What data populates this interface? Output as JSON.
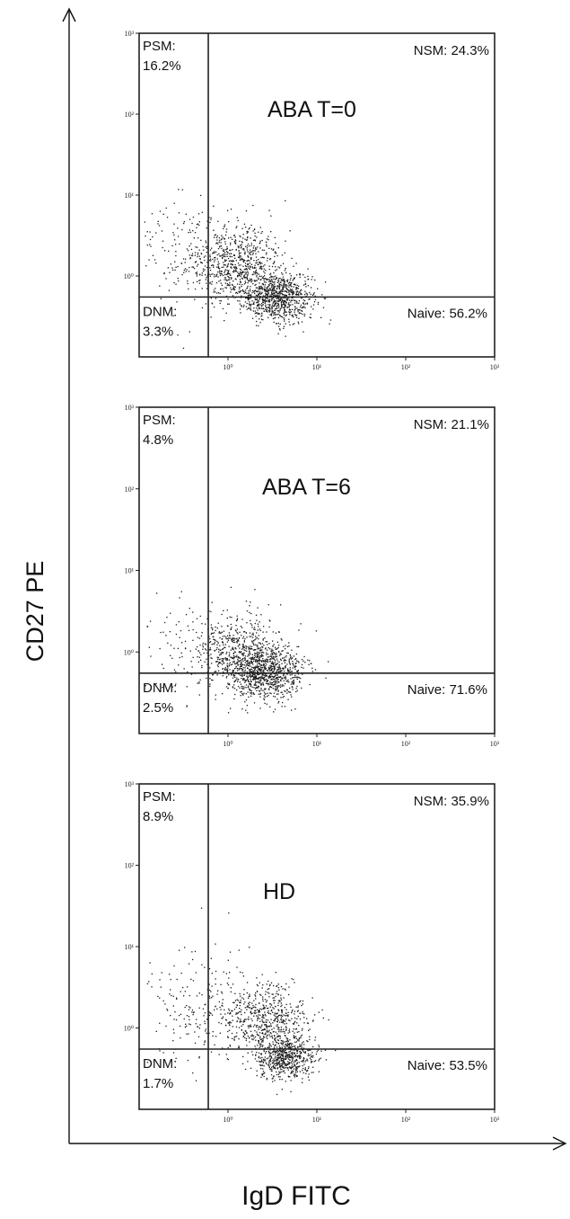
{
  "figure": {
    "y_axis_label": "CD27 PE",
    "x_axis_label": "IgD FITC"
  },
  "chart_data": [
    {
      "type": "scatter",
      "title": "ABA T=0",
      "xlabel": "IgD FITC",
      "ylabel": "CD27 PE",
      "scale": "log",
      "xlim": [
        0.1,
        1000
      ],
      "ylim": [
        0.1,
        1000
      ],
      "x_tick_labels": [
        "10⁰",
        "10¹",
        "10²",
        "10³"
      ],
      "y_tick_labels": [
        "10⁰",
        "10¹",
        "10²",
        "10³"
      ],
      "gates": {
        "x": 0.6,
        "y": 0.55
      },
      "quadrants": {
        "psm": {
          "label": "PSM:",
          "value": "16.2%"
        },
        "nsm": {
          "label": "NSM:",
          "value": "24.3%"
        },
        "dnm": {
          "label": "DNM:",
          "value": "3.3%"
        },
        "naive": {
          "label": "Naive:",
          "value": "56.2%"
        }
      }
    },
    {
      "type": "scatter",
      "title": "ABA T=6",
      "xlabel": "IgD FITC",
      "ylabel": "CD27 PE",
      "scale": "log",
      "xlim": [
        0.1,
        1000
      ],
      "ylim": [
        0.1,
        1000
      ],
      "x_tick_labels": [
        "10⁰",
        "10¹",
        "10²",
        "10³"
      ],
      "y_tick_labels": [
        "10⁰",
        "10¹",
        "10²",
        "10³"
      ],
      "gates": {
        "x": 0.6,
        "y": 0.55
      },
      "quadrants": {
        "psm": {
          "label": "PSM:",
          "value": "4.8%"
        },
        "nsm": {
          "label": "NSM:",
          "value": "21.1%"
        },
        "dnm": {
          "label": "DNM:",
          "value": "2.5%"
        },
        "naive": {
          "label": "Naive:",
          "value": "71.6%"
        }
      }
    },
    {
      "type": "scatter",
      "title": "HD",
      "xlabel": "IgD FITC",
      "ylabel": "CD27 PE",
      "scale": "log",
      "xlim": [
        0.1,
        1000
      ],
      "ylim": [
        0.1,
        1000
      ],
      "x_tick_labels": [
        "10⁰",
        "10¹",
        "10²",
        "10³"
      ],
      "y_tick_labels": [
        "10⁰",
        "10¹",
        "10²",
        "10³"
      ],
      "gates": {
        "x": 0.6,
        "y": 0.55
      },
      "quadrants": {
        "psm": {
          "label": "PSM:",
          "value": "8.9%"
        },
        "nsm": {
          "label": "NSM:",
          "value": "35.9%"
        },
        "dnm": {
          "label": "DNM:",
          "value": "1.7%"
        },
        "naive": {
          "label": "Naive:",
          "value": "53.5%"
        }
      }
    }
  ]
}
